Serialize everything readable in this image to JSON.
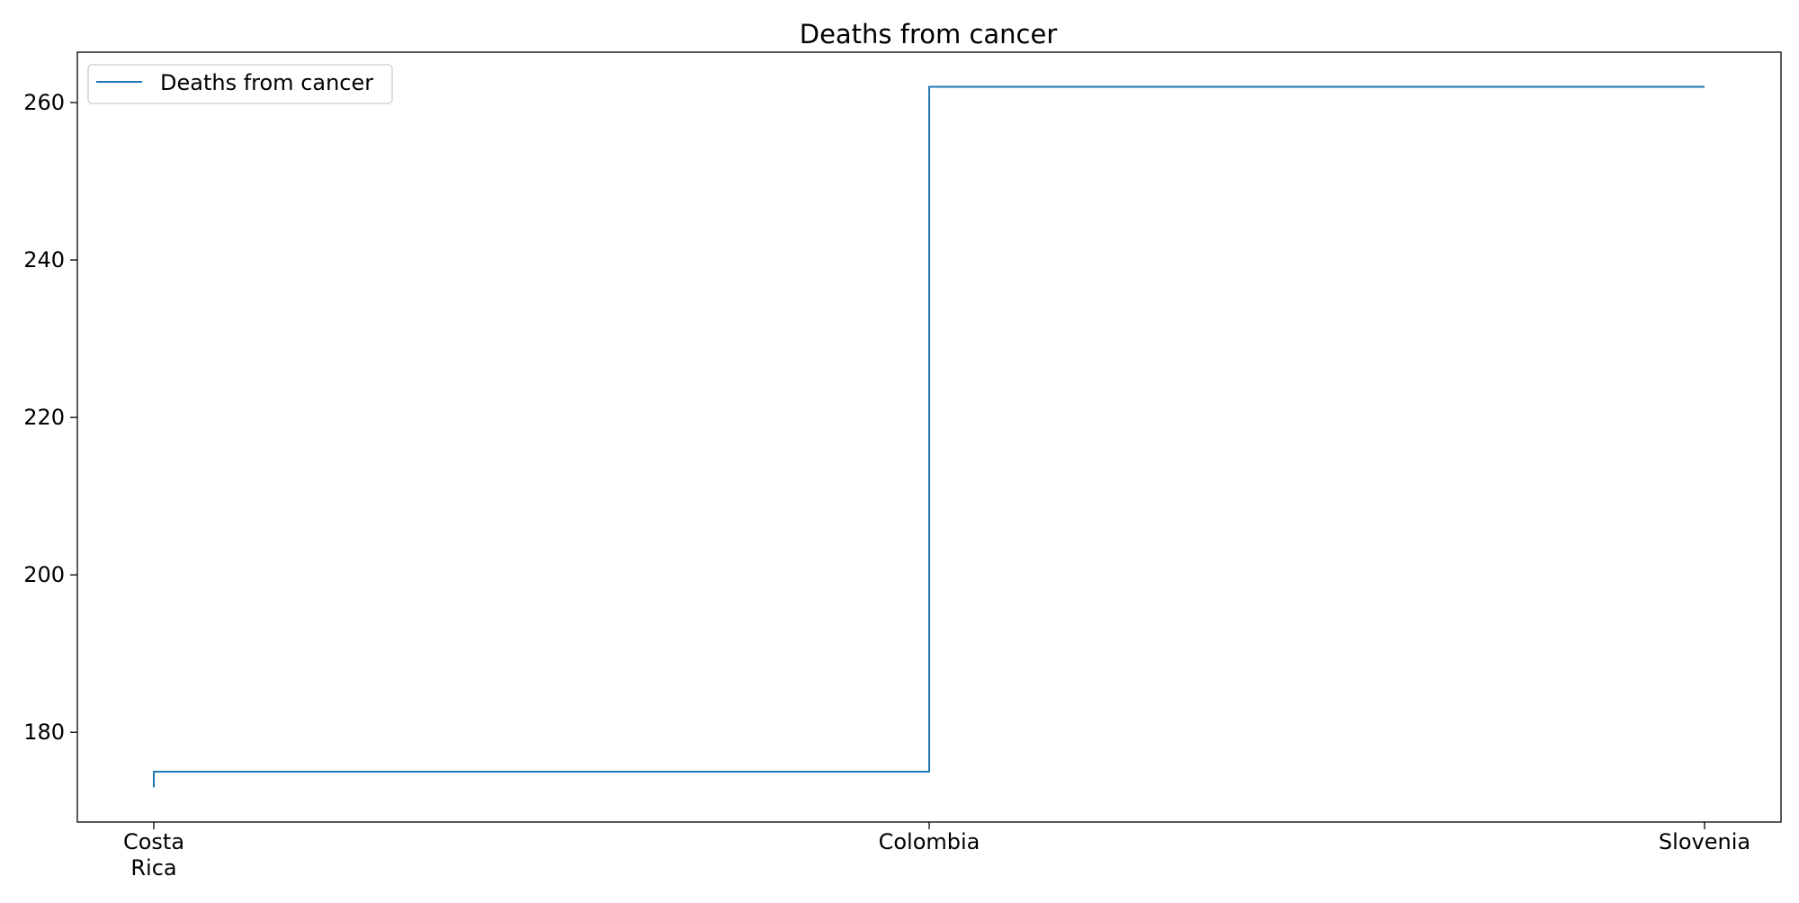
{
  "chart_data": {
    "type": "line",
    "drawstyle": "steps-pre",
    "title": "Deaths from cancer",
    "xlabel": "",
    "ylabel": "",
    "categories": [
      "Costa\nRica",
      "Colombia",
      "Slovenia"
    ],
    "series": [
      {
        "name": "Deaths from cancer",
        "color": "#1f77b4",
        "values": [
          173,
          175,
          262
        ]
      }
    ],
    "ylim": [
      168.6,
      266.4
    ],
    "yticks": [
      180,
      200,
      220,
      240,
      260
    ],
    "grid": false,
    "legend_position": "top-left"
  }
}
